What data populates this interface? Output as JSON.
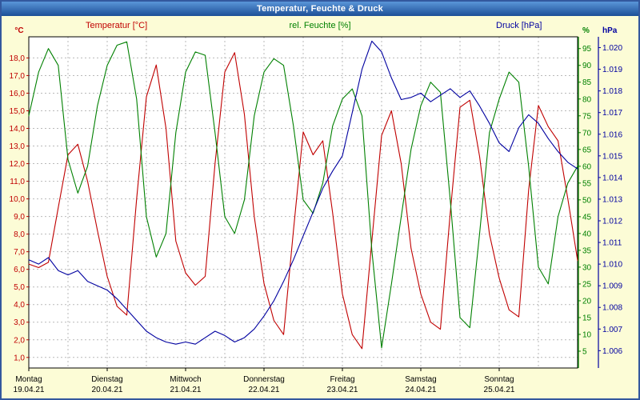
{
  "window": {
    "title": "Temperatur, Feuchte & Druck"
  },
  "legend": {
    "temperature": "Temperatur [°C]",
    "humidity": "rel. Feuchte [%]",
    "pressure": "Druck [hPa]"
  },
  "chart_data": {
    "type": "line",
    "title": "Temperatur, Feuchte & Druck",
    "x_unit": "days",
    "x_step_hours": 3,
    "x_range": [
      0,
      7
    ],
    "grid": "dashed",
    "legend_position": "top",
    "x_ticks": [
      {
        "day": "Montag",
        "date": "19.04.21"
      },
      {
        "day": "Dienstag",
        "date": "20.04.21"
      },
      {
        "day": "Mittwoch",
        "date": "21.04.21"
      },
      {
        "day": "Donnerstag",
        "date": "22.04.21"
      },
      {
        "day": "Freitag",
        "date": "23.04.21"
      },
      {
        "day": "Samstag",
        "date": "24.04.21"
      },
      {
        "day": "Sonntag",
        "date": "25.04.21"
      }
    ],
    "axes": {
      "temperature": {
        "label": "°C",
        "color": "#c00000",
        "side": "left",
        "range": [
          0.4,
          19.2
        ],
        "tick_values": [
          1,
          2,
          3,
          4,
          5,
          6,
          7,
          8,
          9,
          10,
          11,
          12,
          13,
          14,
          15,
          16,
          17,
          18
        ],
        "tick_labels": [
          "1,0",
          "2,0",
          "3,0",
          "4,0",
          "5,0",
          "6,0",
          "7,0",
          "8,0",
          "9,0",
          "10,0",
          "11,0",
          "12,0",
          "13,0",
          "14,0",
          "15,0",
          "16,0",
          "17,0",
          "18,0"
        ]
      },
      "humidity": {
        "label": "%",
        "color": "#008000",
        "side": "right-inner",
        "range": [
          0,
          98.5
        ],
        "tick_values": [
          5,
          10,
          15,
          20,
          25,
          30,
          35,
          40,
          45,
          50,
          55,
          60,
          65,
          70,
          75,
          80,
          85,
          90,
          95
        ],
        "tick_labels": [
          "5",
          "10",
          "15",
          "20",
          "25",
          "30",
          "35",
          "40",
          "45",
          "50",
          "55",
          "60",
          "65",
          "70",
          "75",
          "80",
          "85",
          "90",
          "95"
        ]
      },
      "pressure": {
        "label": "hPa",
        "color": "#0000a0",
        "side": "right-outer",
        "range": [
          1005.2,
          1020.5
        ],
        "tick_values": [
          1006,
          1007,
          1008,
          1009,
          1010,
          1011,
          1012,
          1013,
          1014,
          1015,
          1016,
          1017,
          1018,
          1019,
          1020
        ],
        "tick_labels": [
          "1.006",
          "1.007",
          "1.008",
          "1.009",
          "1.010",
          "1.011",
          "1.012",
          "1.013",
          "1.014",
          "1.015",
          "1.016",
          "1.017",
          "1.018",
          "1.019",
          "1.020"
        ]
      }
    },
    "series": [
      {
        "id": "temperature",
        "name": "Temperatur",
        "axis": "temperature",
        "color": "#c00000",
        "values": [
          6.3,
          6.1,
          6.4,
          9.5,
          12.5,
          13.1,
          11.0,
          8.2,
          5.6,
          3.9,
          3.4,
          10.0,
          15.8,
          17.6,
          14.0,
          7.6,
          5.8,
          5.1,
          5.6,
          12.0,
          17.2,
          18.3,
          14.8,
          9.0,
          5.2,
          3.1,
          2.3,
          8.2,
          13.8,
          12.5,
          13.3,
          9.2,
          4.6,
          2.3,
          1.5,
          7.6,
          13.6,
          15.0,
          12.0,
          7.2,
          4.6,
          3.0,
          2.6,
          9.2,
          15.2,
          15.6,
          12.4,
          8.0,
          5.5,
          3.7,
          3.3,
          10.5,
          15.3,
          14.1,
          13.3,
          10.0,
          6.5
        ]
      },
      {
        "id": "humidity",
        "name": "rel. Feuchte",
        "axis": "humidity",
        "color": "#008000",
        "values": [
          75,
          88,
          95,
          90,
          62,
          52,
          60,
          78,
          90,
          96,
          97,
          80,
          45,
          33,
          40,
          70,
          88,
          94,
          93,
          70,
          45,
          40,
          50,
          75,
          88,
          92,
          90,
          72,
          50,
          46,
          55,
          72,
          80,
          83,
          75,
          35,
          6,
          25,
          45,
          65,
          78,
          85,
          82,
          50,
          15,
          12,
          40,
          70,
          80,
          88,
          85,
          60,
          30,
          25,
          45,
          55,
          60
        ]
      },
      {
        "id": "pressure",
        "name": "Druck",
        "axis": "pressure",
        "color": "#0000a0",
        "values": [
          1010.2,
          1010.0,
          1010.3,
          1009.7,
          1009.5,
          1009.7,
          1009.2,
          1009.0,
          1008.8,
          1008.4,
          1007.9,
          1007.4,
          1006.9,
          1006.6,
          1006.4,
          1006.3,
          1006.4,
          1006.3,
          1006.6,
          1006.9,
          1006.7,
          1006.4,
          1006.6,
          1007.0,
          1007.6,
          1008.3,
          1009.2,
          1010.2,
          1011.3,
          1012.4,
          1013.5,
          1014.3,
          1015.0,
          1017.0,
          1019.0,
          1020.3,
          1019.8,
          1018.6,
          1017.6,
          1017.7,
          1017.9,
          1017.5,
          1017.8,
          1018.1,
          1017.7,
          1018.0,
          1017.3,
          1016.5,
          1015.6,
          1015.2,
          1016.3,
          1016.9,
          1016.5,
          1015.8,
          1015.2,
          1014.7,
          1014.4
        ]
      }
    ]
  }
}
